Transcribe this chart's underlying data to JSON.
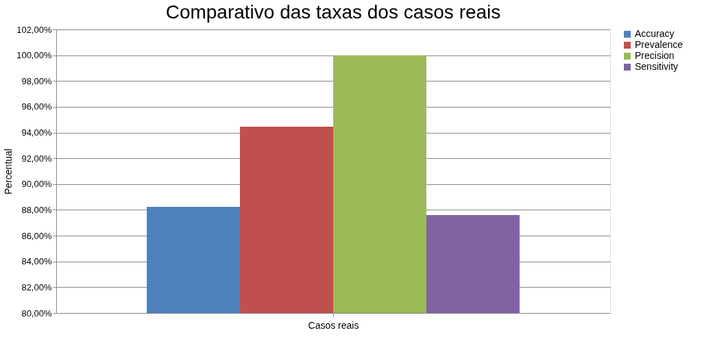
{
  "chart_data": {
    "type": "bar",
    "title": "Comparativo das taxas dos casos reais",
    "xlabel": "Casos reais",
    "ylabel": "Percentual",
    "categories": [
      null
    ],
    "series": [
      {
        "name": "Accuracy",
        "color": "#4f81bd",
        "values": [
          88.24
        ]
      },
      {
        "name": "Prevalence",
        "color": "#c0504d",
        "values": [
          94.45
        ]
      },
      {
        "name": "Precision",
        "color": "#9bbb59",
        "values": [
          100
        ]
      },
      {
        "name": "Sensitivity",
        "color": "#8064a2",
        "values": [
          87.6
        ]
      }
    ],
    "ylim": [
      80,
      102
    ],
    "yticks": [
      {
        "value": 80,
        "label": "80,00%"
      },
      {
        "value": 82,
        "label": "82,00%"
      },
      {
        "value": 84,
        "label": "84,00%"
      },
      {
        "value": 86,
        "label": "86,00%"
      },
      {
        "value": 88,
        "label": "88,00%"
      },
      {
        "value": 90,
        "label": "90,00%"
      },
      {
        "value": 92,
        "label": "92,00%"
      },
      {
        "value": 94,
        "label": "94,00%"
      },
      {
        "value": 96,
        "label": "96,00%"
      },
      {
        "value": 98,
        "label": "98,00%"
      },
      {
        "value": 100,
        "label": "100,00%"
      },
      {
        "value": 102,
        "label": "102,00%"
      }
    ],
    "grid": "y",
    "legend": "right"
  }
}
